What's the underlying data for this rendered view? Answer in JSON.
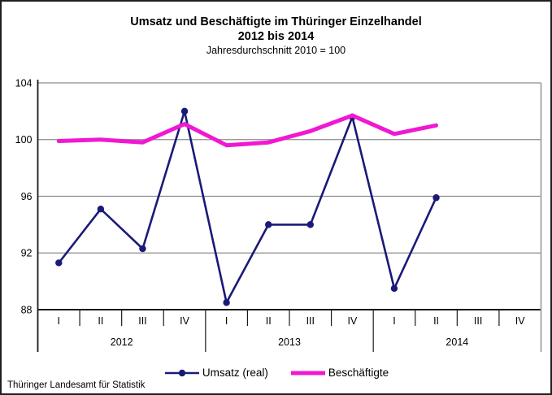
{
  "header": {
    "title_line1": "Umsatz und Beschäftigte im Thüringer Einzelhandel",
    "title_line2": "2012 bis 2014",
    "subtitle": "Jahresdurchschnitt 2010 = 100"
  },
  "chart_data": {
    "type": "line",
    "title": "Umsatz und Beschäftigte im Thüringer Einzelhandel 2012 bis 2014",
    "subtitle": "Jahresdurchschnitt 2010 = 100",
    "x_labels": [
      "I",
      "II",
      "III",
      "IV",
      "I",
      "II",
      "III",
      "IV",
      "I",
      "II",
      "III",
      "IV"
    ],
    "year_groups": [
      {
        "label": "2012",
        "start": 0,
        "count": 4
      },
      {
        "label": "2013",
        "start": 4,
        "count": 4
      },
      {
        "label": "2014",
        "start": 8,
        "count": 4
      }
    ],
    "ylim": [
      88,
      104
    ],
    "yticks": [
      104,
      100,
      96,
      92,
      88
    ],
    "grid": true,
    "legend_position": "bottom",
    "series": [
      {
        "name": "Umsatz (real)",
        "color": "#1a1a78",
        "marker": "circle",
        "values": [
          91.3,
          95.1,
          92.3,
          102.0,
          88.5,
          94.0,
          94.0,
          101.6,
          89.5,
          95.9,
          null,
          null
        ]
      },
      {
        "name": "Beschäftigte",
        "color": "#f018d2",
        "marker": "none",
        "values": [
          99.9,
          100.0,
          99.8,
          101.1,
          99.6,
          99.8,
          100.6,
          101.7,
          100.4,
          101.0,
          null,
          null
        ]
      }
    ]
  },
  "colors": {
    "grid": "#8c8c8c",
    "axis": "#1a1a1a",
    "right_border": "#9a9a9a",
    "background": "#ffffff",
    "frame": "#1f1f1f"
  },
  "footer": {
    "source": "Thüringer Landesamt für Statistik"
  }
}
